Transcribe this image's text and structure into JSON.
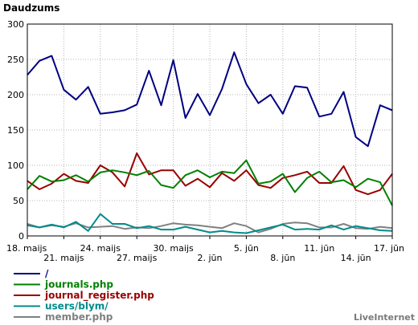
{
  "chart_data": {
    "type": "line",
    "title": "Daudzums",
    "ylim": [
      0,
      300
    ],
    "yticks": [
      0,
      50,
      100,
      150,
      200,
      250,
      300
    ],
    "grid": true,
    "x_tick_labels": [
      {
        "day": 0,
        "label": "18. maijs",
        "row": 0
      },
      {
        "day": 3,
        "label": "21. maijs",
        "row": 1
      },
      {
        "day": 6,
        "label": "24. maijs",
        "row": 0
      },
      {
        "day": 9,
        "label": "27. maijs",
        "row": 1
      },
      {
        "day": 12,
        "label": "30. maijs",
        "row": 0
      },
      {
        "day": 15,
        "label": "2. jūn",
        "row": 1
      },
      {
        "day": 18,
        "label": "5. jūn",
        "row": 0
      },
      {
        "day": 21,
        "label": "8. jūn",
        "row": 1
      },
      {
        "day": 24,
        "label": "11. jūn",
        "row": 0
      },
      {
        "day": 27,
        "label": "14. jūn",
        "row": 1
      },
      {
        "day": 30,
        "label": "17. jūn",
        "row": 0
      }
    ],
    "series": [
      {
        "name": "/",
        "color": "#000080",
        "values": [
          228,
          248,
          255,
          207,
          193,
          211,
          173,
          175,
          178,
          186,
          234,
          185,
          249,
          167,
          201,
          171,
          208,
          260,
          215,
          188,
          200,
          173,
          212,
          210,
          169,
          173,
          204,
          140,
          127,
          185,
          178
        ]
      },
      {
        "name": "journals.php",
        "color": "#008000",
        "values": [
          66,
          85,
          77,
          79,
          86,
          77,
          90,
          93,
          90,
          86,
          92,
          72,
          68,
          86,
          93,
          83,
          91,
          89,
          107,
          74,
          77,
          88,
          62,
          82,
          91,
          76,
          79,
          69,
          81,
          76,
          43
        ]
      },
      {
        "name": "journal_register.php",
        "color": "#990000",
        "values": [
          78,
          66,
          74,
          88,
          78,
          75,
          100,
          90,
          70,
          117,
          87,
          93,
          93,
          71,
          81,
          69,
          89,
          78,
          93,
          72,
          68,
          82,
          86,
          91,
          75,
          75,
          99,
          65,
          59,
          65,
          88
        ]
      },
      {
        "name": "users/blym/",
        "color": "#008b8b",
        "values": [
          15,
          12,
          16,
          12,
          20,
          7,
          31,
          17,
          17,
          11,
          14,
          9,
          9,
          13,
          9,
          5,
          7,
          5,
          4,
          8,
          12,
          16,
          9,
          10,
          9,
          15,
          9,
          14,
          11,
          8,
          7
        ]
      },
      {
        "name": "member.php",
        "color": "#808080",
        "values": [
          17,
          12,
          15,
          13,
          18,
          12,
          13,
          14,
          10,
          12,
          11,
          14,
          18,
          16,
          15,
          13,
          11,
          18,
          14,
          5,
          10,
          17,
          19,
          18,
          12,
          12,
          17,
          11,
          10,
          13,
          11
        ]
      }
    ]
  },
  "brand": "LiveInternet"
}
